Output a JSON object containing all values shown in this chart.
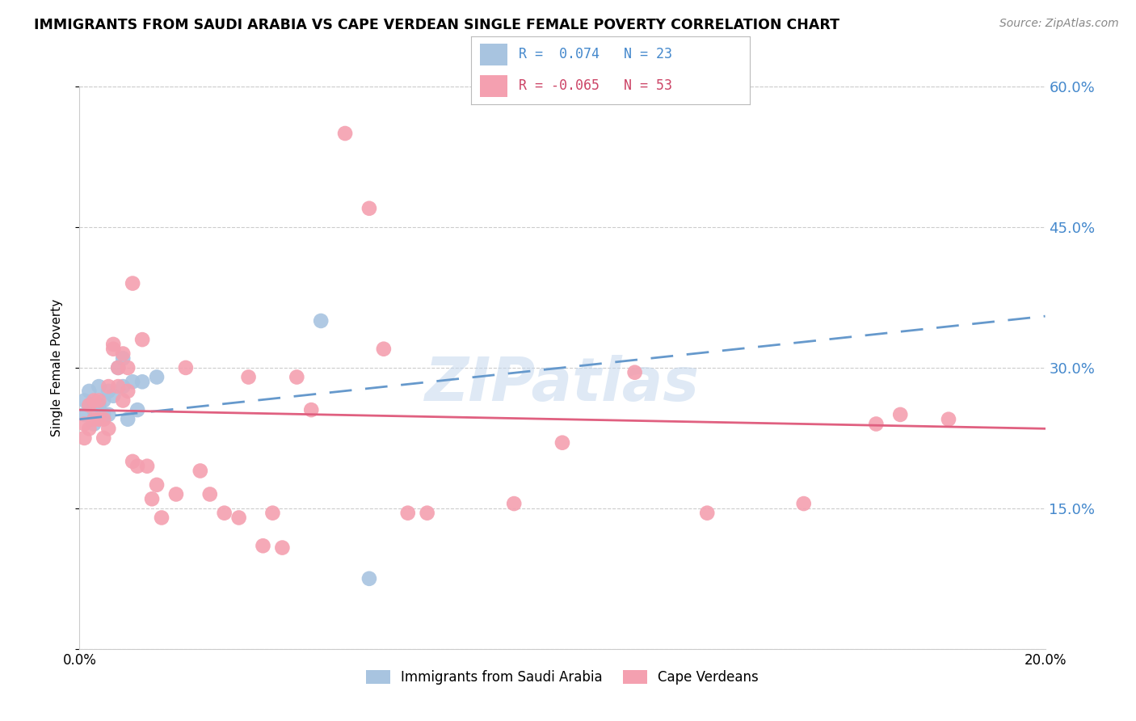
{
  "title": "IMMIGRANTS FROM SAUDI ARABIA VS CAPE VERDEAN SINGLE FEMALE POVERTY CORRELATION CHART",
  "source": "Source: ZipAtlas.com",
  "ylabel": "Single Female Poverty",
  "y_ticks": [
    0.0,
    0.15,
    0.3,
    0.45,
    0.6
  ],
  "y_tick_labels": [
    "",
    "15.0%",
    "30.0%",
    "45.0%",
    "60.0%"
  ],
  "x_ticks": [
    0.0,
    0.05,
    0.1,
    0.15,
    0.2
  ],
  "x_tick_labels": [
    "0.0%",
    "",
    "",
    "",
    "20.0%"
  ],
  "blue_R": 0.074,
  "blue_N": 23,
  "pink_R": -0.065,
  "pink_N": 53,
  "blue_color": "#a8c4e0",
  "pink_color": "#f4a0b0",
  "blue_line_color": "#6699cc",
  "pink_line_color": "#e06080",
  "watermark": "ZIPatlas",
  "blue_label": "Immigrants from Saudi Arabia",
  "pink_label": "Cape Verdeans",
  "blue_points_x": [
    0.001,
    0.001,
    0.002,
    0.002,
    0.003,
    0.003,
    0.004,
    0.004,
    0.005,
    0.005,
    0.006,
    0.006,
    0.007,
    0.008,
    0.009,
    0.009,
    0.01,
    0.011,
    0.012,
    0.013,
    0.016,
    0.05,
    0.06
  ],
  "blue_points_y": [
    0.265,
    0.25,
    0.26,
    0.275,
    0.24,
    0.255,
    0.26,
    0.28,
    0.25,
    0.265,
    0.25,
    0.275,
    0.27,
    0.3,
    0.28,
    0.31,
    0.245,
    0.285,
    0.255,
    0.285,
    0.29,
    0.35,
    0.075
  ],
  "pink_points_x": [
    0.001,
    0.001,
    0.002,
    0.002,
    0.003,
    0.003,
    0.004,
    0.004,
    0.005,
    0.005,
    0.006,
    0.006,
    0.007,
    0.007,
    0.008,
    0.008,
    0.009,
    0.009,
    0.01,
    0.01,
    0.011,
    0.011,
    0.012,
    0.013,
    0.014,
    0.015,
    0.016,
    0.017,
    0.02,
    0.022,
    0.025,
    0.027,
    0.03,
    0.033,
    0.035,
    0.038,
    0.04,
    0.042,
    0.045,
    0.048,
    0.055,
    0.06,
    0.063,
    0.068,
    0.072,
    0.09,
    0.1,
    0.115,
    0.13,
    0.15,
    0.165,
    0.17,
    0.18
  ],
  "pink_points_y": [
    0.24,
    0.225,
    0.235,
    0.26,
    0.245,
    0.265,
    0.245,
    0.265,
    0.225,
    0.245,
    0.235,
    0.28,
    0.32,
    0.325,
    0.28,
    0.3,
    0.265,
    0.315,
    0.275,
    0.3,
    0.39,
    0.2,
    0.195,
    0.33,
    0.195,
    0.16,
    0.175,
    0.14,
    0.165,
    0.3,
    0.19,
    0.165,
    0.145,
    0.14,
    0.29,
    0.11,
    0.145,
    0.108,
    0.29,
    0.255,
    0.55,
    0.47,
    0.32,
    0.145,
    0.145,
    0.155,
    0.22,
    0.295,
    0.145,
    0.155,
    0.24,
    0.25,
    0.245
  ],
  "legend_R_blue_text": "R =  0.074   N = 23",
  "legend_R_pink_text": "R = -0.065   N = 53",
  "legend_blue_color": "#4488cc",
  "legend_pink_color": "#cc4466"
}
